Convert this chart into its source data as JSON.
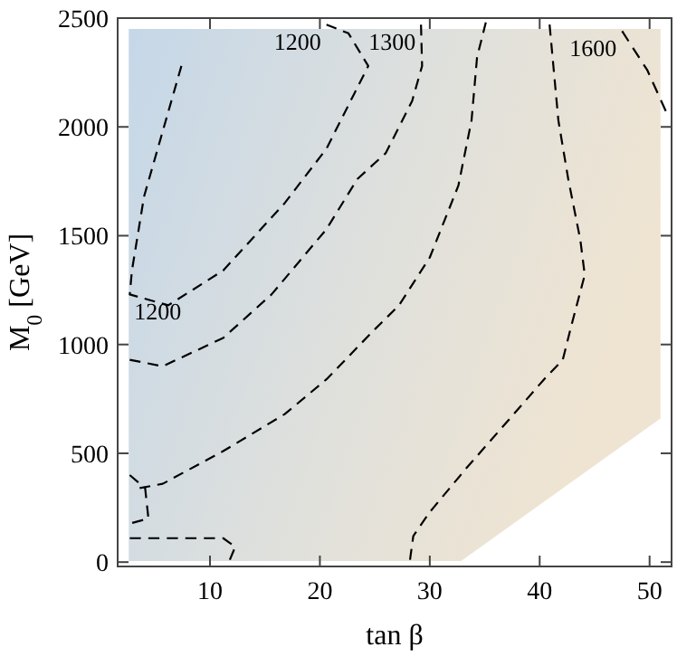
{
  "chart_data": {
    "type": "line",
    "xlabel": "tan β",
    "ylabel": "M$_{0}$ [GeV]",
    "xlim": [
      1.6,
      52
    ],
    "ylim": [
      -20,
      2500
    ],
    "xticks": [
      10,
      20,
      30,
      40,
      50
    ],
    "yticks": [
      0,
      500,
      1000,
      1500,
      2000,
      2500
    ],
    "grid": false,
    "marker": "none",
    "line_style": "dashed",
    "series": [
      {
        "name": "1200",
        "color": "#000000",
        "x": [
          7.4,
          5.7,
          4.0,
          2.9,
          2.7,
          6.2,
          11.2,
          16.8,
          20.6,
          23.1,
          24.4,
          22.6,
          20.6
        ],
        "values": [
          2280,
          1980,
          1680,
          1340,
          1230,
          1180,
          1340,
          1650,
          1900,
          2150,
          2280,
          2430,
          2470
        ]
      },
      {
        "name": "1300",
        "color": "#000000",
        "x": [
          2.7,
          5.7,
          11.2,
          15.6,
          20.6,
          23.4,
          26.0,
          28.4,
          29.3,
          29.2
        ],
        "values": [
          930,
          900,
          1030,
          1230,
          1530,
          1760,
          1880,
          2120,
          2280,
          2470
        ]
      },
      {
        "color": "#000000",
        "x": [
          3.6,
          5.7,
          11.2,
          16.8,
          20.6,
          25.0,
          27.2,
          30.0,
          32.6,
          33.8,
          34.3,
          35.1
        ],
        "values": [
          340,
          360,
          510,
          680,
          840,
          1070,
          1180,
          1400,
          1730,
          2030,
          2320,
          2480
        ]
      },
      {
        "color": "#000000",
        "x": [
          40.9,
          41.7,
          42.6,
          43.7,
          44.1,
          42.9,
          42.1,
          40.4,
          36.6,
          33.3,
          30.0,
          28.5,
          28.2
        ],
        "values": [
          2470,
          2030,
          1760,
          1480,
          1320,
          1090,
          930,
          840,
          620,
          430,
          230,
          120,
          10
        ]
      },
      {
        "name": "1600",
        "color": "#000000",
        "x": [
          47.5,
          49.8,
          51.5
        ],
        "values": [
          2440,
          2260,
          2070
        ]
      },
      {
        "color": "#000000",
        "x": [
          2.7,
          11.2,
          12.3,
          11.8
        ],
        "values": [
          110,
          110,
          70,
          10
        ]
      },
      {
        "color": "#000000",
        "x": [
          2.7,
          4.1,
          4.4,
          2.9
        ],
        "values": [
          400,
          340,
          200,
          180
        ]
      }
    ],
    "annotations": [
      "1200"
    ]
  }
}
